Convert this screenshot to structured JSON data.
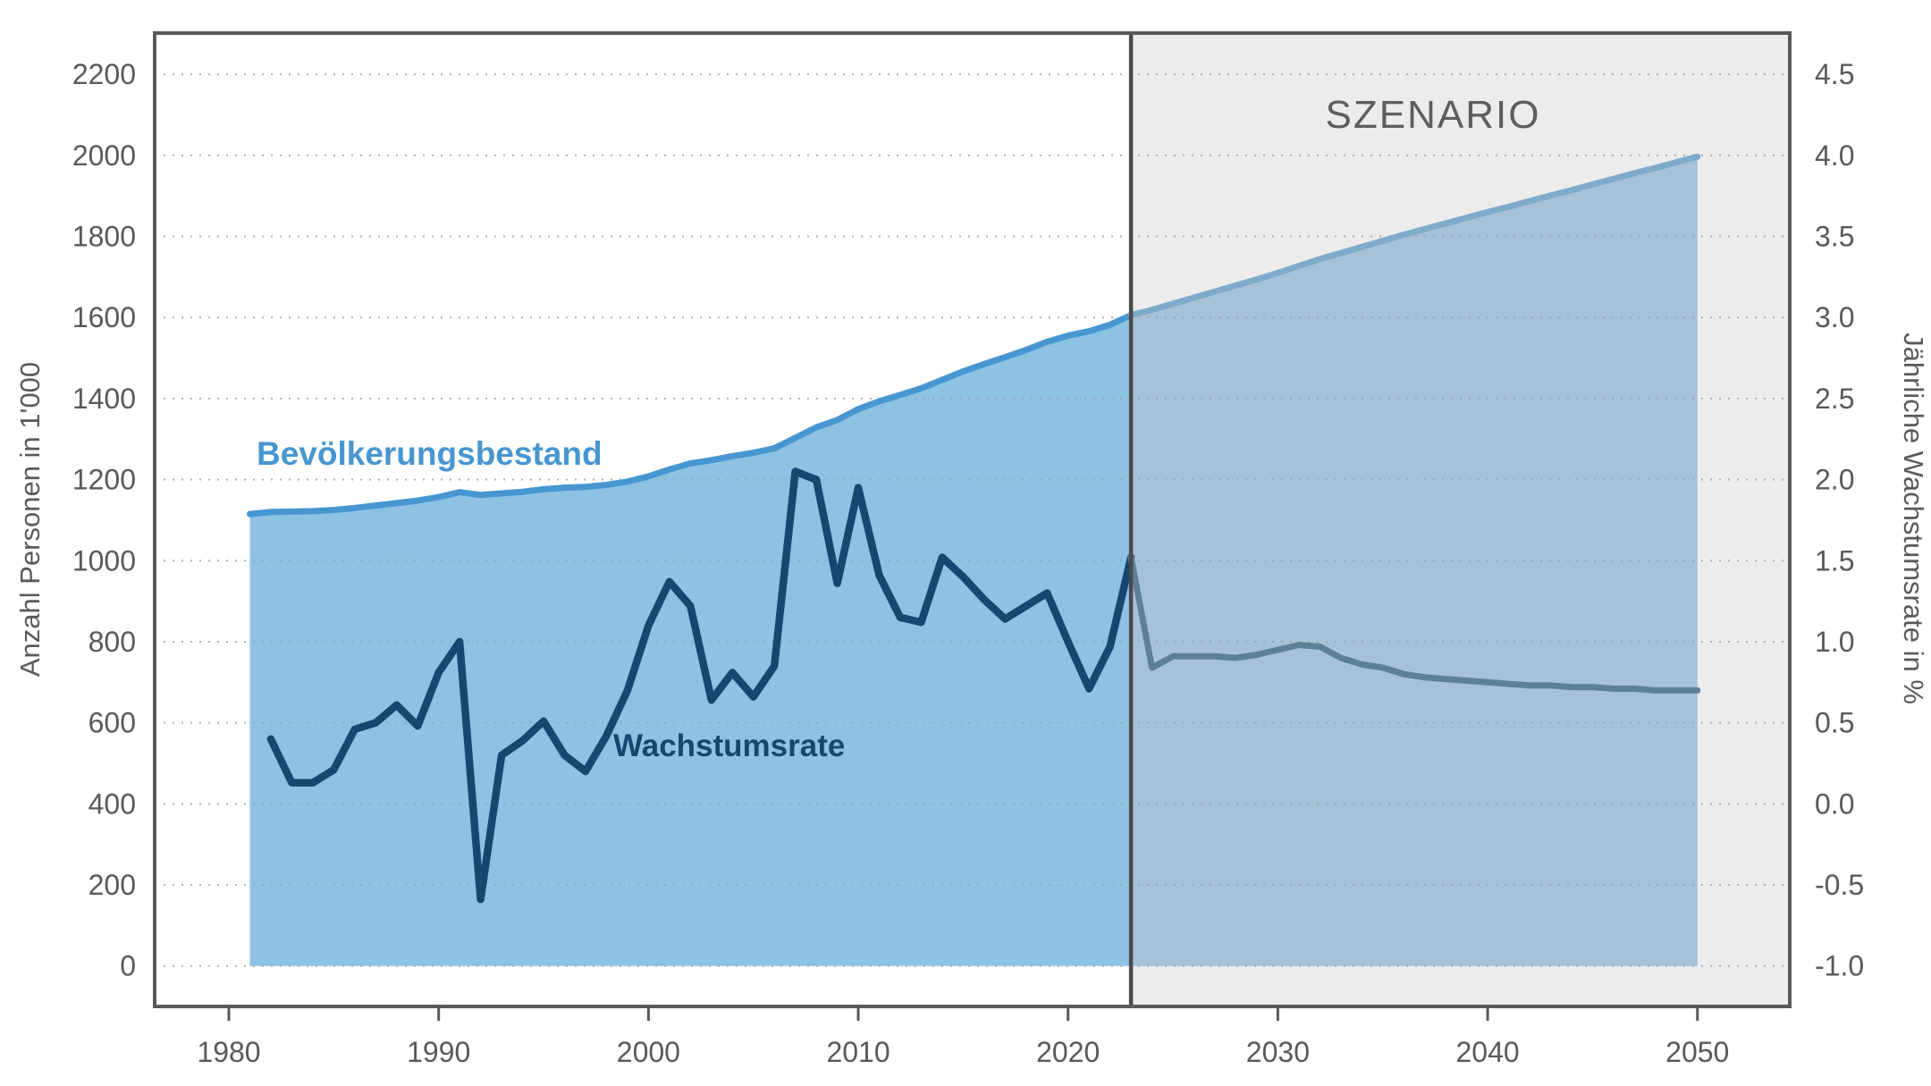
{
  "chart": {
    "annotations": {
      "population_label": "Bevölkerungsbestand",
      "growth_label": "Wachstumsrate",
      "scenario_label": "SZENARIO"
    },
    "axes": {
      "left": {
        "title": "Anzahl Personen in 1'000",
        "tick_labels": [
          "0",
          "200",
          "400",
          "600",
          "800",
          "1000",
          "1200",
          "1400",
          "1600",
          "1800",
          "2000",
          "2200"
        ],
        "tick_values": [
          0,
          200,
          400,
          600,
          800,
          1000,
          1200,
          1400,
          1600,
          1800,
          2000,
          2200
        ],
        "range": [
          0,
          2200
        ]
      },
      "right": {
        "title": "Jährliche Wachstumsrate in %",
        "tick_labels": [
          "-1.0",
          "-0.5",
          "0.0",
          "0.5",
          "1.0",
          "1.5",
          "2.0",
          "2.5",
          "3.0",
          "3.5",
          "4.0",
          "4.5"
        ],
        "tick_values": [
          -1.0,
          -0.5,
          0.0,
          0.5,
          1.0,
          1.5,
          2.0,
          2.5,
          3.0,
          3.5,
          4.0,
          4.5
        ],
        "range": [
          -1.0,
          4.5
        ]
      },
      "x": {
        "tick_labels": [
          "1980",
          "1990",
          "2000",
          "2010",
          "2020",
          "2030",
          "2040",
          "2050"
        ],
        "tick_values": [
          1980,
          1990,
          2000,
          2010,
          2020,
          2030,
          2040,
          2050
        ],
        "range": [
          1980,
          2050
        ]
      }
    },
    "grid": "dotted horizontal lines at every left-axis tick"
  },
  "chart_data": {
    "type": "area",
    "scenario_start_year": 2023,
    "series": [
      {
        "name": "Bevölkerungsbestand",
        "segment": "historisch",
        "axis": "left",
        "style": "area",
        "start_year": 1981,
        "values": [
          1115,
          1120,
          1121,
          1122,
          1125,
          1130,
          1136,
          1142,
          1148,
          1157,
          1169,
          1162,
          1166,
          1170,
          1176,
          1180,
          1182,
          1187,
          1195,
          1208,
          1225,
          1240,
          1248,
          1258,
          1266,
          1277,
          1303,
          1329,
          1347,
          1374,
          1393,
          1409,
          1425,
          1446,
          1467,
          1485,
          1502,
          1520,
          1540,
          1555,
          1566,
          1582,
          1606
        ]
      },
      {
        "name": "Bevölkerungsbestand",
        "segment": "szenario",
        "axis": "left",
        "style": "area",
        "start_year": 2023,
        "values": [
          1606,
          1619,
          1634,
          1649,
          1664,
          1679,
          1694,
          1710,
          1727,
          1744,
          1759,
          1774,
          1789,
          1804,
          1818,
          1832,
          1846,
          1860,
          1873,
          1887,
          1901,
          1914,
          1928,
          1942,
          1956,
          1969,
          1983,
          1997
        ]
      },
      {
        "name": "Wachstumsrate",
        "segment": "historisch",
        "axis": "right",
        "style": "line",
        "start_year": 1982,
        "values": [
          0.4,
          0.13,
          0.13,
          0.21,
          0.46,
          0.5,
          0.61,
          0.48,
          0.81,
          1.0,
          -0.59,
          0.3,
          0.39,
          0.51,
          0.3,
          0.2,
          0.42,
          0.7,
          1.1,
          1.37,
          1.22,
          0.64,
          0.81,
          0.66,
          0.85,
          2.05,
          2.0,
          1.36,
          1.95,
          1.41,
          1.15,
          1.12,
          1.52,
          1.4,
          1.26,
          1.14,
          1.22,
          1.3,
          1.0,
          0.71,
          0.97,
          1.52
        ]
      },
      {
        "name": "Wachstumsrate",
        "segment": "szenario",
        "axis": "right",
        "style": "line",
        "start_year": 2023,
        "values": [
          1.52,
          0.84,
          0.91,
          0.91,
          0.91,
          0.9,
          0.92,
          0.95,
          0.98,
          0.97,
          0.9,
          0.86,
          0.84,
          0.8,
          0.78,
          0.77,
          0.76,
          0.75,
          0.74,
          0.73,
          0.73,
          0.72,
          0.72,
          0.71,
          0.71,
          0.7,
          0.7,
          0.7
        ]
      }
    ],
    "title": "",
    "xlabel": "",
    "ylabel_left": "Anzahl Personen in 1'000",
    "ylabel_right": "Jährliche Wachstumsrate in %"
  },
  "colors": {
    "population_line": "#4796d1",
    "population_fill": "#8dc2e3",
    "population_line_scenario": "#7fabcb",
    "population_fill_scenario": "#a6c2d8",
    "growth_line": "#16486f",
    "growth_line_scenario": "#5d8099",
    "scenario_bg": "#ececec",
    "divider": "#4a4a4a",
    "border": "#595959",
    "grid": "#9ca3a8",
    "tick_text": "#595959",
    "scenario_text": "#5d5d5d"
  }
}
